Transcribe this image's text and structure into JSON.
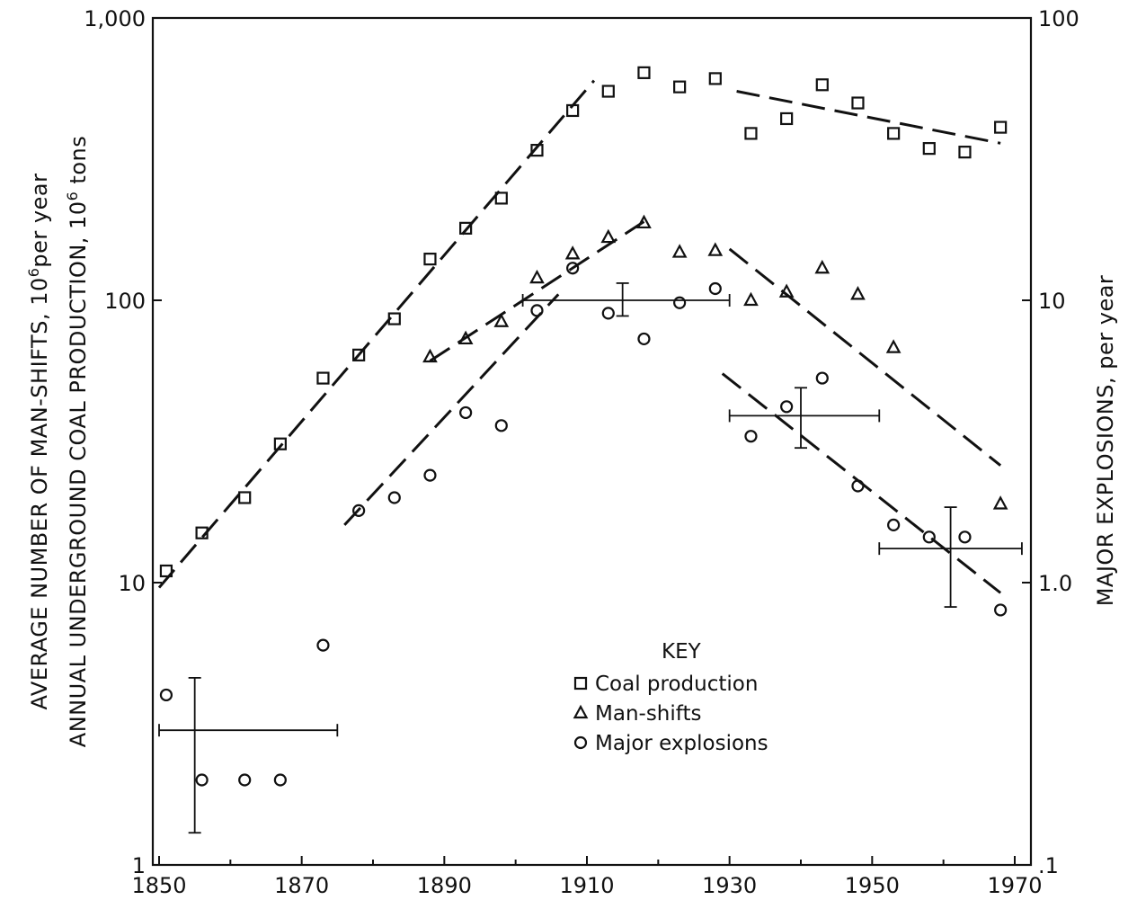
{
  "chart_data": {
    "type": "scatter",
    "xlabel": "",
    "ylabel_left_line1": "AVERAGE NUMBER OF MAN-SHIFTS, 10",
    "ylabel_left_line1_sup": "6",
    "ylabel_left_line1_end": "per year",
    "ylabel_left_line2": "ANNUAL UNDERGROUND COAL PRODUCTION, 10",
    "ylabel_left_line2_sup": "6",
    "ylabel_left_line2_end": " tons",
    "ylabel_right": "MAJOR EXPLOSIONS, per year",
    "x_scale": "linear",
    "y_scale": "log",
    "xlim": [
      1850,
      1971
    ],
    "ylim_left": [
      1,
      1000
    ],
    "ylim_right": [
      0.1,
      100
    ],
    "x_ticks": [
      1850,
      1870,
      1890,
      1910,
      1930,
      1950,
      1970
    ],
    "x_tick_labels": [
      "1850",
      "1870",
      "1890",
      "1910",
      "1930",
      "1950",
      "1970"
    ],
    "y_left_ticks": [
      1,
      10,
      100,
      1000
    ],
    "y_left_tick_labels": [
      "1",
      "10",
      "100",
      "1,000"
    ],
    "y_right_ticks": [
      0.1,
      1,
      10,
      100
    ],
    "y_right_tick_labels": [
      ".1",
      "1.0",
      "10",
      "100"
    ],
    "key_title": "KEY",
    "series": [
      {
        "name": "Coal production",
        "marker": "square",
        "axis": "left",
        "x": [
          1851,
          1856,
          1862,
          1867,
          1873,
          1878,
          1883,
          1888,
          1893,
          1898,
          1903,
          1908,
          1913,
          1918,
          1923,
          1928,
          1933,
          1938,
          1943,
          1948,
          1953,
          1958,
          1963,
          1968
        ],
        "y": [
          11,
          15,
          20,
          31,
          53,
          64,
          86,
          140,
          180,
          230,
          340,
          470,
          550,
          640,
          570,
          610,
          390,
          440,
          580,
          500,
          390,
          345,
          335,
          410
        ]
      },
      {
        "name": "Man-shifts",
        "marker": "triangle",
        "axis": "left",
        "x": [
          1888,
          1893,
          1898,
          1903,
          1908,
          1913,
          1918,
          1923,
          1928,
          1933,
          1938,
          1943,
          1948,
          1953,
          1968
        ],
        "y": [
          63,
          73,
          84,
          120,
          146,
          167,
          188,
          148,
          150,
          100,
          107,
          130,
          105,
          68,
          19
        ]
      },
      {
        "name": "Major explosions",
        "marker": "circle",
        "axis": "right",
        "x": [
          1851,
          1856,
          1862,
          1867,
          1873,
          1878,
          1883,
          1888,
          1893,
          1898,
          1903,
          1908,
          1913,
          1918,
          1923,
          1928,
          1933,
          1938,
          1943,
          1948,
          1953,
          1958,
          1963,
          1968
        ],
        "y": [
          0.4,
          0.2,
          0.2,
          0.2,
          0.6,
          1.8,
          2.0,
          2.4,
          4.0,
          3.6,
          9.2,
          13.0,
          9.0,
          7.3,
          9.8,
          11.0,
          3.3,
          4.2,
          5.3,
          2.2,
          1.6,
          1.45,
          1.45,
          0.8
        ]
      }
    ],
    "trend_lines": [
      {
        "axis": "left",
        "from": [
          1850,
          9.6
        ],
        "to": [
          1911,
          600
        ]
      },
      {
        "axis": "left",
        "from": [
          1931,
          550
        ],
        "to": [
          1968,
          360
        ]
      },
      {
        "axis": "left",
        "from": [
          1888,
          61
        ],
        "to": [
          1918,
          190
        ]
      },
      {
        "axis": "left",
        "from": [
          1930,
          152
        ],
        "to": [
          1968,
          26
        ]
      },
      {
        "axis": "right",
        "from": [
          1876,
          1.6
        ],
        "to": [
          1906,
          10.5
        ]
      },
      {
        "axis": "right",
        "from": [
          1929,
          5.5
        ],
        "to": [
          1968,
          0.92
        ]
      }
    ],
    "error_bars": [
      {
        "axis": "right",
        "x_range": [
          1850,
          1875
        ],
        "y_value": 0.3,
        "x_value": 1855,
        "y_range": [
          0.13,
          0.46
        ]
      },
      {
        "axis": "right",
        "x_range": [
          1901,
          1930
        ],
        "y_value": 10,
        "x_value": 1915,
        "y_range": [
          8.8,
          11.5
        ]
      },
      {
        "axis": "right",
        "x_range": [
          1930,
          1951
        ],
        "y_value": 3.9,
        "x_value": 1940,
        "y_range": [
          3.0,
          4.9
        ]
      },
      {
        "axis": "right",
        "x_range": [
          1951,
          1971
        ],
        "y_value": 1.32,
        "x_value": 1961,
        "y_range": [
          0.82,
          1.85
        ]
      }
    ]
  }
}
